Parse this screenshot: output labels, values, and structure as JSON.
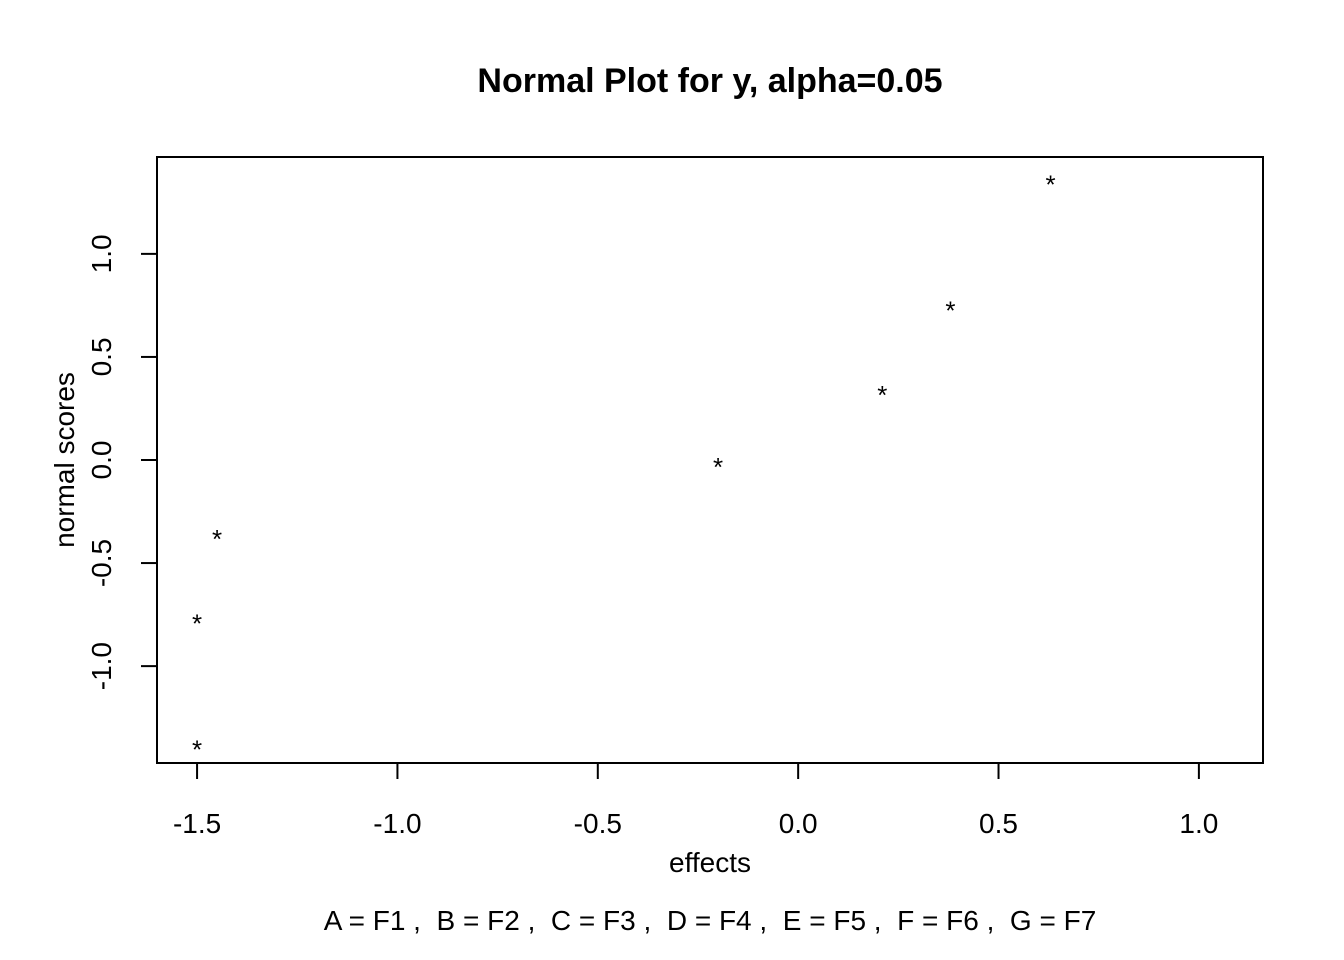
{
  "chart_data": {
    "type": "scatter",
    "title": "Normal Plot for y, alpha=0.05",
    "xlabel": "effects",
    "ylabel": "normal scores",
    "footnote": "A = F1 ,  B = F2 ,  C = F3 ,  D = F4 ,  E = F5 ,  F = F6 ,  G = F7",
    "marker": "*",
    "xlim": [
      -1.6,
      1.16
    ],
    "ylim": [
      -1.47,
      1.47
    ],
    "x_ticks": [
      -1.5,
      -1.0,
      -0.5,
      0.0,
      0.5,
      1.0
    ],
    "x_tick_labels": [
      "-1.5",
      "-1.0",
      "-0.5",
      "0.0",
      "0.5",
      "1.0"
    ],
    "y_ticks": [
      -1.0,
      -0.5,
      0.0,
      0.5,
      1.0
    ],
    "y_tick_labels": [
      "-1.0",
      "-0.5",
      "0.0",
      "0.5",
      "1.0"
    ],
    "grid": false,
    "points": [
      {
        "x": -1.5,
        "y": -1.37
      },
      {
        "x": -1.5,
        "y": -0.76
      },
      {
        "x": -1.45,
        "y": -0.35
      },
      {
        "x": -0.2,
        "y": 0.0
      },
      {
        "x": 0.21,
        "y": 0.35
      },
      {
        "x": 0.38,
        "y": 0.76
      },
      {
        "x": 0.63,
        "y": 1.37
      }
    ],
    "colors": {
      "ink": "#000000",
      "background": "#ffffff"
    }
  }
}
